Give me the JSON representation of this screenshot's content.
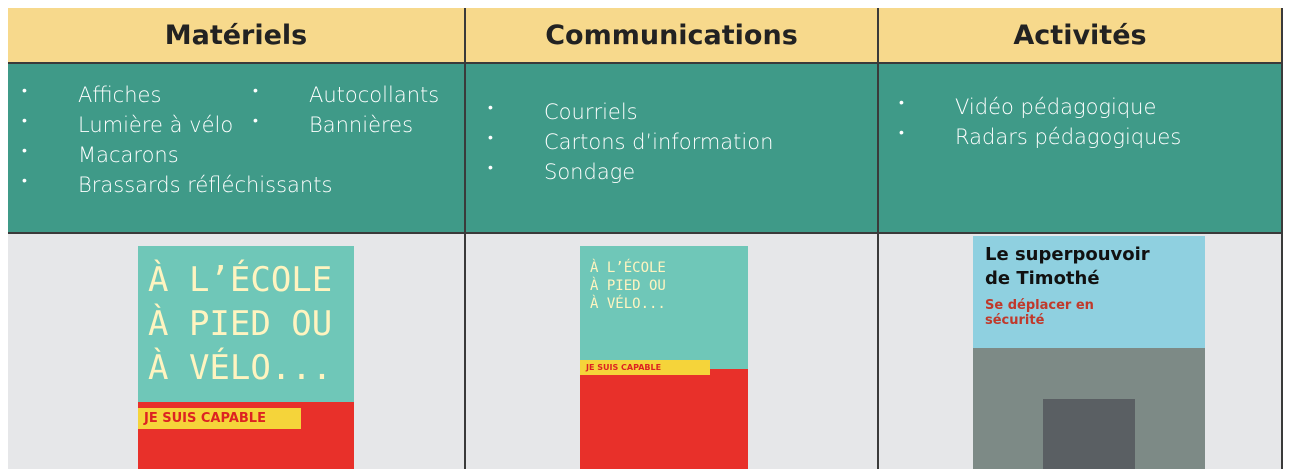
{
  "table": {
    "headers": [
      "Matériels",
      "Communications",
      "Activités"
    ],
    "cells": [
      {
        "columns": [
          [
            "Affiches",
            "Lumière à vélo",
            "Macarons",
            "Brassards réfléchissants"
          ],
          [
            "Autocollants",
            "Bannières"
          ]
        ]
      },
      {
        "columns": [
          [
            "Courriels",
            "Cartons d’information",
            "Sondage"
          ]
        ]
      },
      {
        "columns": [
          [
            "Vidéo pédagogique",
            "Radars pédagogiques"
          ]
        ]
      }
    ],
    "images": [
      {
        "title": [
          "À l’école",
          "à pied ou",
          "à vélo..."
        ],
        "banner": "Je suis capable"
      },
      {
        "title": [
          "À l’école",
          "à pied ou",
          "à vélo..."
        ],
        "banner": "Je suis capable"
      },
      {
        "title": [
          "Le superpouvoir",
          "de Timothé"
        ],
        "banner": "Se déplacer en sécurité"
      }
    ]
  }
}
